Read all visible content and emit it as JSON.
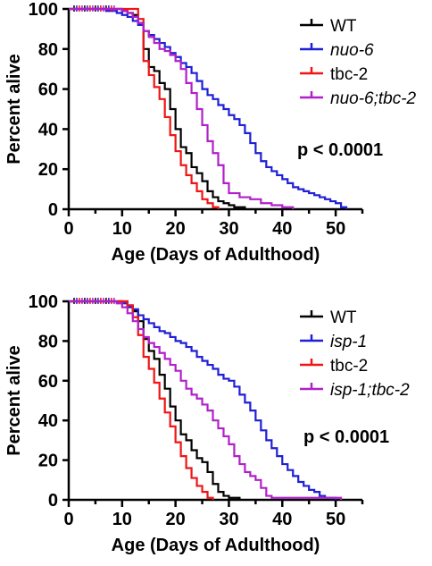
{
  "chart_data": [
    {
      "type": "line",
      "step": true,
      "xlabel": "Age (Days of Adulthood)",
      "ylabel": "Percent alive",
      "xlim": [
        0,
        55
      ],
      "ylim": [
        0,
        100
      ],
      "xticks": [
        "0",
        "10",
        "20",
        "30",
        "40",
        "50"
      ],
      "yticks": [
        "0",
        "20",
        "40",
        "60",
        "80",
        "100"
      ],
      "grid": false,
      "legend_position": "top-right",
      "annotation": "p < 0.0001",
      "series": [
        {
          "name": "WT",
          "color": "#000000",
          "italic": false,
          "x": [
            0,
            10,
            11,
            12,
            13,
            14,
            15,
            16,
            17,
            18,
            19,
            20,
            21,
            22,
            23,
            24,
            25,
            26,
            27,
            28,
            29,
            30,
            31,
            32,
            33
          ],
          "y": [
            100,
            99,
            98,
            97,
            93,
            80,
            71,
            69,
            63,
            60,
            50,
            40,
            31,
            28,
            21,
            18,
            14,
            9,
            6,
            4,
            3,
            2,
            1,
            1,
            0
          ]
        },
        {
          "name": "nuo-6",
          "color": "#1f1fd6",
          "italic": true,
          "x": [
            0,
            7,
            9,
            10,
            11,
            12,
            13,
            14,
            15,
            16,
            17,
            18,
            19,
            20,
            21,
            22,
            23,
            24,
            25,
            26,
            27,
            28,
            29,
            30,
            31,
            32,
            33,
            34,
            35,
            36,
            37,
            38,
            39,
            40,
            41,
            42,
            43,
            44,
            45,
            46,
            47,
            48,
            49,
            50,
            51,
            52
          ],
          "y": [
            100,
            99,
            98,
            97,
            96,
            94,
            92,
            89,
            87,
            85,
            83,
            81,
            78,
            76,
            73,
            71,
            68,
            64,
            60,
            57,
            55,
            52,
            50,
            47,
            45,
            42,
            38,
            33,
            28,
            24,
            21,
            19,
            17,
            15,
            13,
            11,
            10,
            9,
            8,
            7,
            6,
            5,
            4,
            3,
            1,
            0
          ]
        },
        {
          "name": "tbc-2",
          "color": "#f01414",
          "italic": false,
          "x": [
            0,
            13,
            14,
            15,
            16,
            17,
            18,
            19,
            20,
            21,
            22,
            23,
            24,
            25,
            26,
            27,
            28
          ],
          "y": [
            100,
            95,
            74,
            67,
            61,
            55,
            46,
            37,
            29,
            22,
            17,
            13,
            9,
            5,
            3,
            1,
            0
          ]
        },
        {
          "name": "nuo-6;tbc-2",
          "color": "#b020c8",
          "italic": true,
          "x": [
            0,
            10,
            11,
            12,
            13,
            14,
            15,
            16,
            17,
            18,
            19,
            20,
            21,
            22,
            23,
            24,
            25,
            26,
            27,
            28,
            29,
            30,
            32,
            34,
            36,
            38,
            40,
            42
          ],
          "y": [
            100,
            99,
            98,
            96,
            93,
            89,
            86,
            83,
            80,
            79,
            77,
            74,
            70,
            63,
            58,
            50,
            42,
            34,
            28,
            22,
            13,
            8,
            6,
            5,
            3,
            2,
            1,
            0
          ]
        }
      ]
    },
    {
      "type": "line",
      "step": true,
      "xlabel": "Age (Days of Adulthood)",
      "ylabel": "Percent alive",
      "xlim": [
        0,
        55
      ],
      "ylim": [
        0,
        100
      ],
      "xticks": [
        "0",
        "10",
        "20",
        "30",
        "40",
        "50"
      ],
      "yticks": [
        "0",
        "20",
        "40",
        "60",
        "80",
        "100"
      ],
      "grid": false,
      "legend_position": "top-right",
      "annotation": "p < 0.0001",
      "series": [
        {
          "name": "WT",
          "color": "#000000",
          "italic": false,
          "x": [
            0,
            11,
            12,
            13,
            14,
            15,
            16,
            17,
            18,
            19,
            20,
            21,
            22,
            23,
            24,
            25,
            26,
            27,
            28,
            29,
            30,
            31,
            32
          ],
          "y": [
            100,
            98,
            95,
            90,
            81,
            75,
            71,
            63,
            56,
            47,
            40,
            33,
            30,
            25,
            21,
            19,
            14,
            8,
            4,
            2,
            1,
            1,
            0
          ]
        },
        {
          "name": "isp-1",
          "color": "#1f1fd6",
          "italic": true,
          "x": [
            0,
            10,
            11,
            12,
            13,
            14,
            15,
            16,
            17,
            18,
            19,
            20,
            21,
            22,
            23,
            24,
            25,
            26,
            27,
            28,
            29,
            30,
            31,
            32,
            33,
            34,
            35,
            36,
            37,
            38,
            39,
            40,
            41,
            42,
            43,
            44,
            45,
            46,
            47,
            48,
            49,
            50
          ],
          "y": [
            100,
            99,
            97,
            96,
            93,
            91,
            89,
            87,
            85,
            84,
            82,
            80,
            79,
            77,
            75,
            72,
            70,
            68,
            66,
            63,
            61,
            60,
            57,
            53,
            49,
            45,
            40,
            35,
            30,
            26,
            22,
            18,
            15,
            12,
            9,
            7,
            5,
            4,
            2,
            1,
            1,
            0
          ]
        },
        {
          "name": "tbc-2",
          "color": "#f01414",
          "italic": false,
          "x": [
            0,
            11,
            12,
            13,
            14,
            15,
            16,
            17,
            18,
            19,
            20,
            21,
            22,
            23,
            24,
            25,
            26,
            27
          ],
          "y": [
            100,
            98,
            92,
            83,
            72,
            66,
            59,
            51,
            44,
            37,
            29,
            22,
            16,
            11,
            7,
            4,
            1,
            0
          ]
        },
        {
          "name": "isp-1;tbc-2",
          "color": "#b020c8",
          "italic": true,
          "x": [
            0,
            9,
            10,
            11,
            12,
            13,
            14,
            15,
            16,
            17,
            18,
            19,
            20,
            21,
            22,
            23,
            24,
            25,
            26,
            27,
            28,
            29,
            30,
            31,
            32,
            33,
            34,
            35,
            36,
            37,
            38,
            40,
            42,
            44,
            46,
            48,
            50,
            51
          ],
          "y": [
            100,
            99,
            97,
            94,
            90,
            86,
            82,
            79,
            77,
            74,
            71,
            68,
            65,
            60,
            56,
            53,
            51,
            48,
            45,
            40,
            36,
            32,
            28,
            22,
            18,
            14,
            12,
            10,
            6,
            2,
            1,
            1,
            1,
            1,
            1,
            1,
            1,
            0
          ]
        }
      ]
    }
  ]
}
